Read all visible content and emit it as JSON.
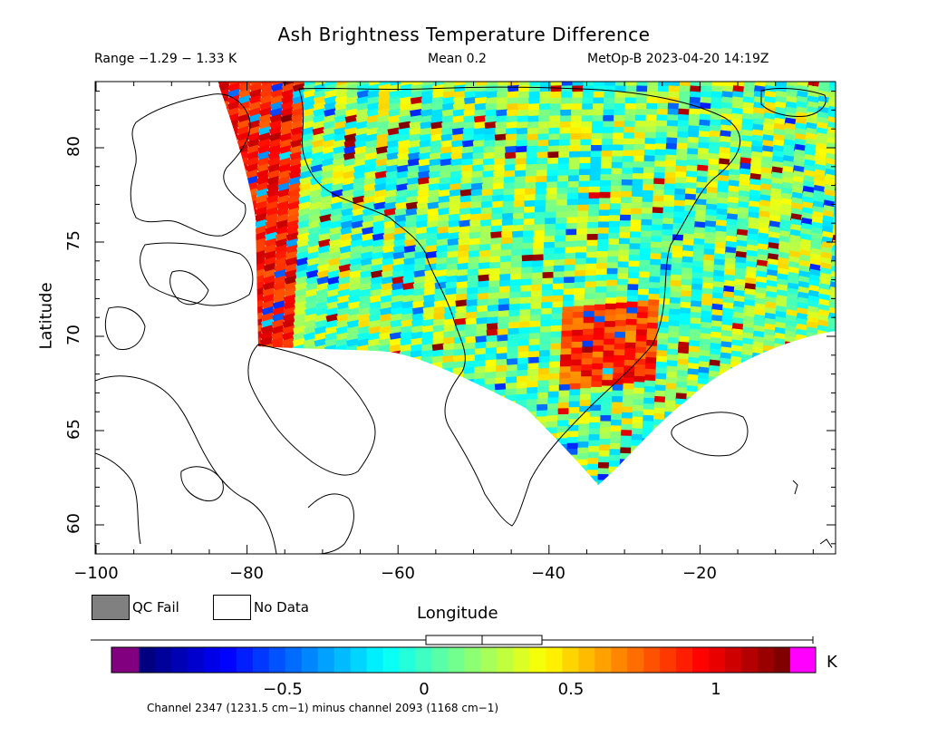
{
  "header": {
    "title": "Ash Brightness Temperature Difference",
    "range": "Range −1.29 − 1.33 K",
    "mean": "Mean 0.2",
    "satellite_time": "MetOp-B 2023-04-20 14:19Z"
  },
  "axes": {
    "ylabel": "Latitude",
    "xlabel": "Longitude",
    "yticks": [
      "80",
      "75",
      "70",
      "65",
      "60"
    ],
    "xticks": [
      "−100",
      "−80",
      "−60",
      "−40",
      "−20"
    ]
  },
  "legend": {
    "qc_fail": "QC Fail",
    "no_data": "No Data",
    "qc_fail_color": "#808080",
    "no_data_color": "#ffffff"
  },
  "colorbar": {
    "units": "K",
    "ticks": [
      "−0.5",
      "0",
      "0.5",
      "1"
    ],
    "colors": [
      "#000080",
      "#0000ff",
      "#0080ff",
      "#00ffff",
      "#80ff80",
      "#ffff00",
      "#ff8000",
      "#ff0000",
      "#800000"
    ],
    "under_color": "#800080",
    "over_color": "#ff00ff"
  },
  "caption": "Channel 2347 (1231.5 cm−1) minus channel 2093 (1168 cm−1)",
  "chart_data": {
    "type": "heatmap",
    "title": "Ash Brightness Temperature Difference",
    "xlabel": "Longitude",
    "ylabel": "Latitude",
    "xlim": [
      -100,
      -2
    ],
    "ylim": [
      58.5,
      83.5
    ],
    "value_range": [
      -1.29,
      1.33
    ],
    "mean": 0.2,
    "units": "K",
    "colorbar_range": [
      -1.3,
      1.3
    ]
  }
}
